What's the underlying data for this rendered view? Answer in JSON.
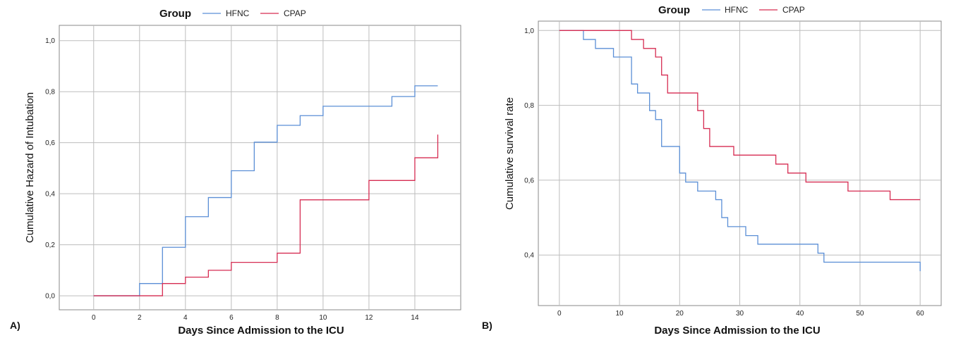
{
  "legend": {
    "title": "Group",
    "entries": [
      {
        "name": "HFNC",
        "color": "#5b8fd6"
      },
      {
        "name": "CPAP",
        "color": "#d62c52"
      }
    ]
  },
  "chart_data": [
    {
      "panel": "A)",
      "type": "line",
      "step": true,
      "title": "",
      "xlabel": "Days Since Admission to the ICU",
      "ylabel": "Cumulative Hazard of Intubation",
      "xlim": [
        -1.5,
        16
      ],
      "ylim": [
        -0.055,
        1.06
      ],
      "xticks": [
        0,
        2,
        4,
        6,
        8,
        10,
        12,
        14
      ],
      "xtick_labels": [
        "0",
        "2",
        "4",
        "6",
        "8",
        "10",
        "12",
        "14"
      ],
      "yticks": [
        0.0,
        0.2,
        0.4,
        0.6,
        0.8,
        1.0
      ],
      "ytick_labels": [
        "0,0",
        "0,2",
        "0,4",
        "0,6",
        "0,8",
        "1,0"
      ],
      "grid": true,
      "series": [
        {
          "name": "HFNC",
          "x": [
            0,
            2,
            3,
            4,
            5,
            6,
            7,
            8,
            9,
            10,
            13,
            14,
            15
          ],
          "y": [
            0.0,
            0.048,
            0.19,
            0.31,
            0.385,
            0.49,
            0.602,
            0.668,
            0.706,
            0.743,
            0.781,
            0.823,
            0.823
          ]
        },
        {
          "name": "CPAP",
          "x": [
            0,
            3,
            4,
            5,
            6,
            8,
            9,
            12,
            14,
            15,
            15
          ],
          "y": [
            0.0,
            0.048,
            0.073,
            0.1,
            0.131,
            0.167,
            0.376,
            0.452,
            0.541,
            0.541,
            0.632
          ]
        }
      ]
    },
    {
      "panel": "B)",
      "type": "line",
      "step": true,
      "title": "",
      "xlabel": "Days Since Admission to the ICU",
      "ylabel": "Cumulative survival rate",
      "xlim": [
        -3.5,
        63.5
      ],
      "ylim": [
        0.265,
        1.025
      ],
      "xticks": [
        0,
        10,
        20,
        30,
        40,
        50,
        60
      ],
      "xtick_labels": [
        "0",
        "10",
        "20",
        "30",
        "40",
        "50",
        "60"
      ],
      "yticks": [
        0.4,
        0.6,
        0.8,
        1.0
      ],
      "ytick_labels": [
        "0,4",
        "0,6",
        "0,8",
        "1,0"
      ],
      "grid": true,
      "series": [
        {
          "name": "HFNC",
          "x": [
            0,
            4,
            6,
            9,
            12,
            13,
            15,
            16,
            17,
            20,
            21,
            23,
            26,
            27,
            28,
            31,
            33,
            43,
            44,
            60,
            60
          ],
          "y": [
            1.0,
            0.976,
            0.952,
            0.929,
            0.857,
            0.833,
            0.786,
            0.762,
            0.69,
            0.619,
            0.595,
            0.571,
            0.548,
            0.5,
            0.476,
            0.452,
            0.429,
            0.405,
            0.381,
            0.381,
            0.357
          ]
        },
        {
          "name": "CPAP",
          "x": [
            0,
            12,
            14,
            16,
            17,
            18,
            23,
            24,
            25,
            29,
            36,
            38,
            41,
            48,
            55,
            60
          ],
          "y": [
            1.0,
            0.976,
            0.952,
            0.929,
            0.881,
            0.833,
            0.786,
            0.738,
            0.69,
            0.667,
            0.643,
            0.619,
            0.595,
            0.571,
            0.548,
            0.548
          ]
        }
      ]
    }
  ]
}
